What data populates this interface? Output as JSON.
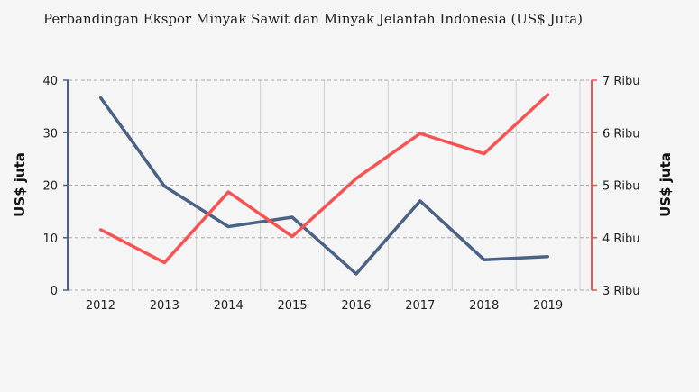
{
  "chart_data": {
    "type": "line",
    "title": "Perbandingan Ekspor Minyak Sawit dan Minyak Jelantah Indonesia (US$ Juta)",
    "categories": [
      "2012",
      "2013",
      "2014",
      "2015",
      "2016",
      "2017",
      "2018",
      "2019"
    ],
    "y_left": {
      "label": "US$ juta",
      "range": [
        0,
        40
      ],
      "ticks": [
        "0",
        "10",
        "20",
        "30",
        "40"
      ],
      "color": "#4a6285"
    },
    "y_right": {
      "label": "US$ juta",
      "range": [
        3000,
        7000
      ],
      "ticks": [
        "3 Ribu",
        "4 Ribu",
        "5 Ribu",
        "6 Ribu",
        "7 Ribu"
      ],
      "color": "#fa5252"
    },
    "series": [
      {
        "axis": "left",
        "color": "#4a6285",
        "values": [
          36.7,
          19.8,
          12.1,
          13.9,
          3.1,
          17.0,
          5.8,
          6.4
        ]
      },
      {
        "axis": "right",
        "color": "#fa5252",
        "values": [
          4154,
          3525,
          4870,
          4022,
          5127,
          5985,
          5600,
          6727
        ]
      }
    ],
    "grid": true,
    "legend": "none"
  }
}
